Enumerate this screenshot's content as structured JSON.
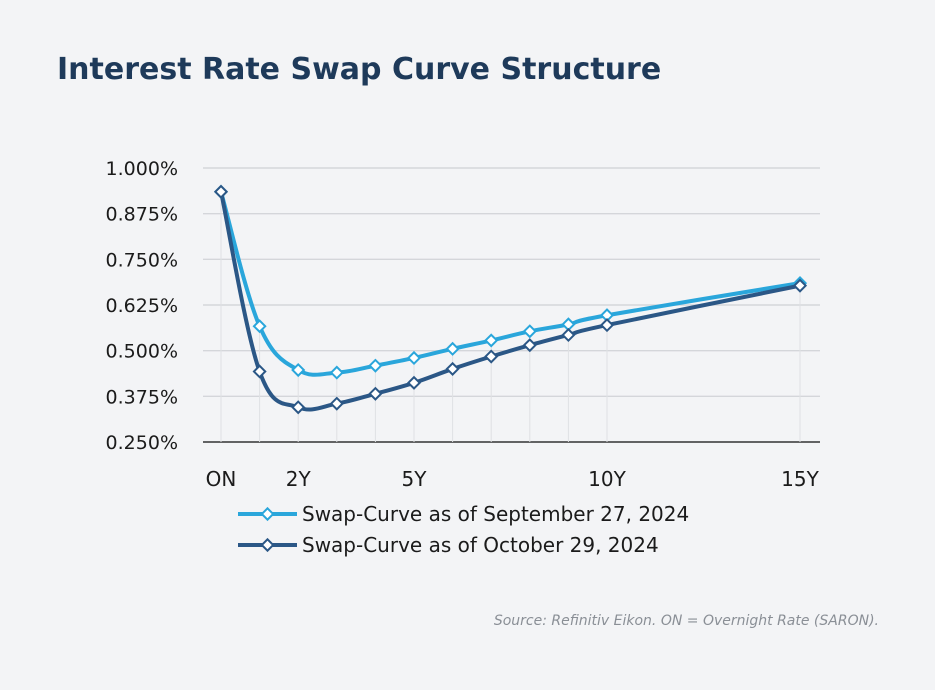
{
  "title": "Interest Rate Swap Curve Structure",
  "source": "Source: Refinitiv Eikon. ON = Overnight Rate (SARON).",
  "colors": {
    "series1": "#2aa6db",
    "series2": "#2b5786",
    "grid": "#d4d6da",
    "axis": "#333333"
  },
  "chart_data": {
    "type": "line",
    "x": [
      0,
      0.5,
      1,
      1.5,
      2,
      2.5,
      3,
      3.5,
      4,
      4.5,
      5,
      7.5
    ],
    "x_tick_labels": [
      {
        "x": 0,
        "label": "ON"
      },
      {
        "x": 1,
        "label": "2Y"
      },
      {
        "x": 2.5,
        "label": "5Y"
      },
      {
        "x": 5,
        "label": "10Y"
      },
      {
        "x": 7.5,
        "label": "15Y"
      }
    ],
    "y_tick_labels": [
      "1.000%",
      "0.875%",
      "0.750%",
      "0.625%",
      "0.500%",
      "0.375%",
      "0.250%"
    ],
    "y_ticks": [
      1.0,
      0.875,
      0.75,
      0.625,
      0.5,
      0.375,
      0.25
    ],
    "ylim": [
      0.25,
      1.0
    ],
    "grid": true,
    "legend_position": "bottom",
    "series": [
      {
        "name": "Swap-Curve as of September 27, 2024",
        "color": "#2aa6db",
        "values": [
          0.935,
          0.567,
          0.447,
          0.44,
          0.459,
          0.48,
          0.505,
          0.528,
          0.553,
          0.572,
          0.597,
          0.685
        ]
      },
      {
        "name": "Swap-Curve as of October 29, 2024",
        "color": "#2b5786",
        "values": [
          0.935,
          0.443,
          0.345,
          0.355,
          0.382,
          0.412,
          0.45,
          0.484,
          0.515,
          0.543,
          0.57,
          0.678
        ]
      }
    ]
  }
}
